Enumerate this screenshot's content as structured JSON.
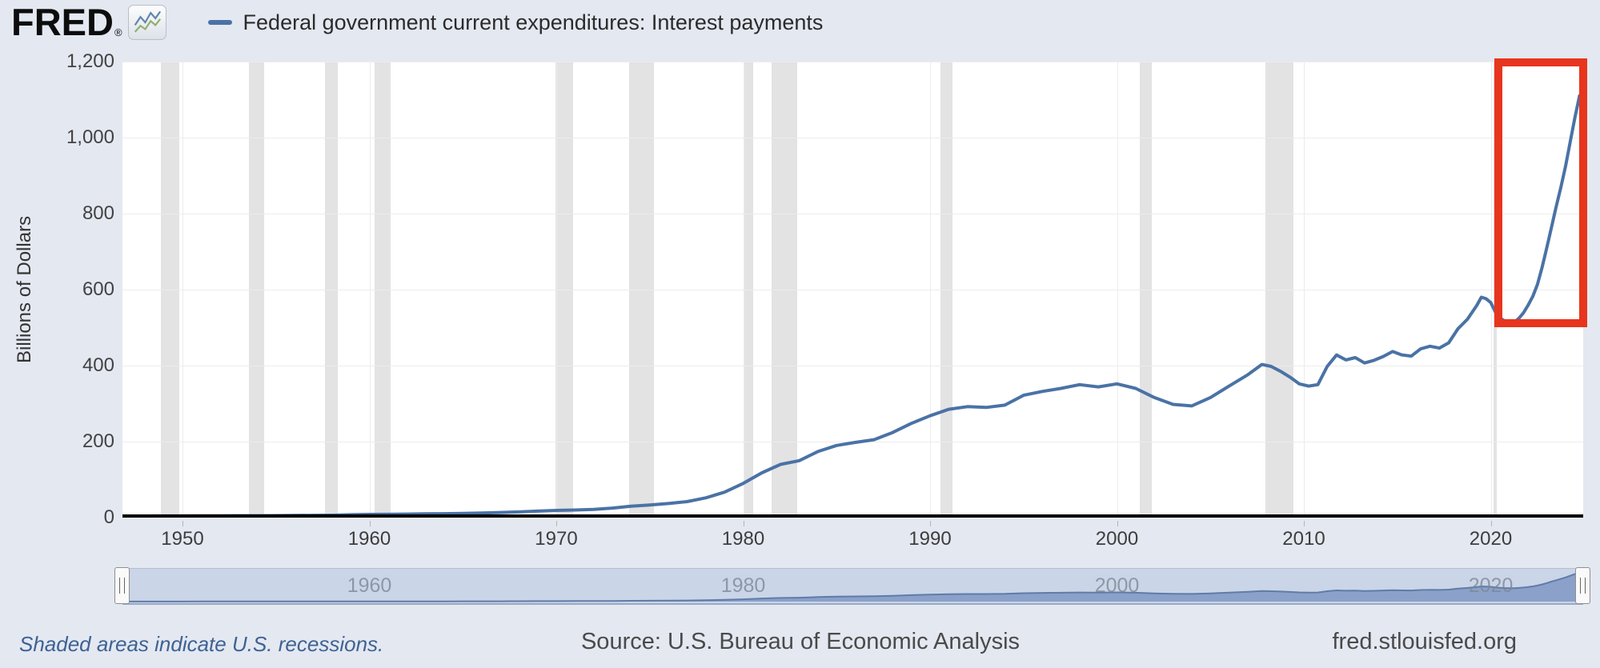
{
  "header": {
    "logo": "FRED",
    "logo_registered": "®",
    "legend": {
      "series_label": "Federal government current expenditures: Interest payments",
      "swatch_color": "#4a72a5"
    }
  },
  "chart_data": {
    "type": "line",
    "title": "Federal government current expenditures: Interest payments",
    "ylabel": "Billions of Dollars",
    "xlabel": "",
    "xlim": [
      1947,
      2025.2
    ],
    "ylim": [
      0,
      1200
    ],
    "y_ticks": [
      0,
      200,
      400,
      600,
      800,
      1000,
      1200
    ],
    "x_ticks": [
      1950,
      1960,
      1970,
      1980,
      1990,
      2000,
      2010,
      2020
    ],
    "grid": true,
    "legend_position": "top-left",
    "series": [
      {
        "name": "Federal government current expenditures: Interest payments",
        "color": "#4a72a5",
        "points": [
          [
            1947,
            4
          ],
          [
            1948,
            4.2
          ],
          [
            1949,
            4.4
          ],
          [
            1950,
            4.5
          ],
          [
            1951,
            4.6
          ],
          [
            1952,
            4.8
          ],
          [
            1953,
            5
          ],
          [
            1954,
            5.1
          ],
          [
            1955,
            5.3
          ],
          [
            1956,
            5.6
          ],
          [
            1957,
            6
          ],
          [
            1958,
            6.3
          ],
          [
            1959,
            7.5
          ],
          [
            1960,
            8.5
          ],
          [
            1961,
            8.6
          ],
          [
            1962,
            9.2
          ],
          [
            1963,
            9.8
          ],
          [
            1964,
            10.4
          ],
          [
            1965,
            11
          ],
          [
            1966,
            12.2
          ],
          [
            1967,
            13.4
          ],
          [
            1968,
            15
          ],
          [
            1969,
            17
          ],
          [
            1970,
            19
          ],
          [
            1971,
            20
          ],
          [
            1972,
            21.5
          ],
          [
            1973,
            25
          ],
          [
            1974,
            30
          ],
          [
            1975,
            33
          ],
          [
            1976,
            37
          ],
          [
            1977,
            42
          ],
          [
            1978,
            52
          ],
          [
            1979,
            67
          ],
          [
            1980,
            90
          ],
          [
            1981,
            118
          ],
          [
            1982,
            140
          ],
          [
            1983,
            150
          ],
          [
            1984,
            174
          ],
          [
            1985,
            190
          ],
          [
            1986,
            198
          ],
          [
            1987,
            205
          ],
          [
            1988,
            224
          ],
          [
            1989,
            248
          ],
          [
            1990,
            268
          ],
          [
            1991,
            285
          ],
          [
            1992,
            292
          ],
          [
            1993,
            290
          ],
          [
            1994,
            296
          ],
          [
            1995,
            322
          ],
          [
            1996,
            332
          ],
          [
            1997,
            340
          ],
          [
            1998,
            350
          ],
          [
            1999,
            344
          ],
          [
            2000,
            352
          ],
          [
            2001,
            340
          ],
          [
            2002,
            316
          ],
          [
            2003,
            298
          ],
          [
            2004,
            294
          ],
          [
            2005,
            316
          ],
          [
            2006,
            346
          ],
          [
            2007,
            376
          ],
          [
            2007.75,
            403
          ],
          [
            2008.25,
            398
          ],
          [
            2008.75,
            385
          ],
          [
            2009.25,
            370
          ],
          [
            2009.75,
            352
          ],
          [
            2010.25,
            346
          ],
          [
            2010.75,
            350
          ],
          [
            2011.25,
            398
          ],
          [
            2011.75,
            428
          ],
          [
            2012.25,
            415
          ],
          [
            2012.75,
            421
          ],
          [
            2013.25,
            407
          ],
          [
            2013.75,
            414
          ],
          [
            2014.25,
            424
          ],
          [
            2014.75,
            437
          ],
          [
            2015.25,
            428
          ],
          [
            2015.75,
            425
          ],
          [
            2016.25,
            444
          ],
          [
            2016.75,
            451
          ],
          [
            2017.25,
            446
          ],
          [
            2017.75,
            460
          ],
          [
            2018.25,
            497
          ],
          [
            2018.75,
            522
          ],
          [
            2019.25,
            558
          ],
          [
            2019.5,
            580
          ],
          [
            2019.75,
            576
          ],
          [
            2020,
            566
          ],
          [
            2020.25,
            541
          ],
          [
            2020.5,
            525
          ],
          [
            2020.75,
            517
          ],
          [
            2021,
            511
          ],
          [
            2021.25,
            514
          ],
          [
            2021.5,
            524
          ],
          [
            2021.75,
            539
          ],
          [
            2022,
            559
          ],
          [
            2022.25,
            582
          ],
          [
            2022.5,
            614
          ],
          [
            2022.75,
            659
          ],
          [
            2023,
            711
          ],
          [
            2023.25,
            764
          ],
          [
            2023.5,
            818
          ],
          [
            2023.75,
            869
          ],
          [
            2024,
            924
          ],
          [
            2024.25,
            988
          ],
          [
            2024.5,
            1052
          ],
          [
            2024.75,
            1110
          ]
        ]
      }
    ],
    "recessions": [
      [
        1948.83,
        1949.83
      ],
      [
        1953.54,
        1954.38
      ],
      [
        1957.63,
        1958.29
      ],
      [
        1960.29,
        1961.13
      ],
      [
        1969.96,
        1970.88
      ],
      [
        1973.88,
        1975.21
      ],
      [
        1980.04,
        1980.54
      ],
      [
        1981.54,
        1982.88
      ],
      [
        1990.54,
        1991.21
      ],
      [
        2001.21,
        2001.88
      ],
      [
        2007.96,
        2009.46
      ],
      [
        2020.13,
        2020.29
      ]
    ],
    "highlight_box": {
      "from_year": 2020.2,
      "to_year": 2025.16,
      "from_value": 500,
      "to_value": 1208,
      "color": "#e8351e",
      "border_px": 10
    },
    "navigator": {
      "labels": [
        "1960",
        "1980",
        "2000",
        "2020"
      ],
      "label_years": [
        1960,
        1980,
        2000,
        2020
      ],
      "area_color": "#8ba1c9",
      "line_color": "#5f7ca8",
      "track_color": "#cad5e7"
    }
  },
  "footer": {
    "recession_note": "Shaded areas indicate U.S. recessions.",
    "source": "Source: U.S. Bureau of Economic Analysis",
    "website": "fred.stlouisfed.org"
  },
  "colors": {
    "background": "#e4e8f1",
    "plot_background": "#ffffff",
    "recession_band": "#e3e3e3",
    "gridline": "#ececec",
    "axis_line": "#000000",
    "series_line": "#4a72a5",
    "highlight_red": "#e8351e",
    "footer_note_blue": "#3e6293"
  }
}
